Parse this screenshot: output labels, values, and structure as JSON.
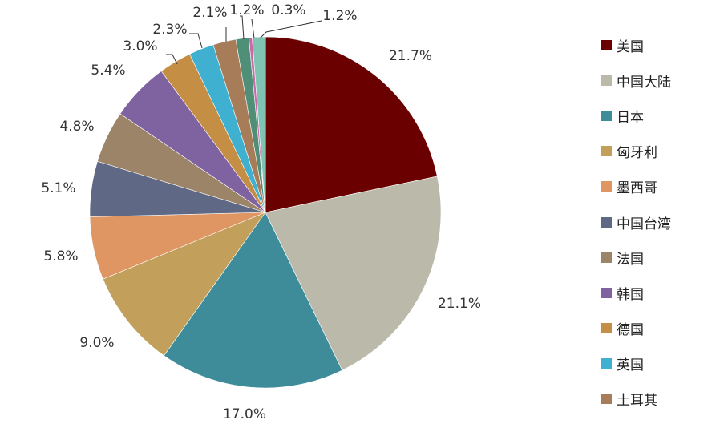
{
  "chart_data": {
    "type": "pie",
    "title": "",
    "slices": [
      {
        "label": "美国",
        "value": 21.7,
        "display": "21.7%",
        "color": "#6b0000"
      },
      {
        "label": "中国大陆",
        "value": 21.1,
        "display": "21.1%",
        "color": "#bbb9a9"
      },
      {
        "label": "日本",
        "value": 17.0,
        "display": "17.0%",
        "color": "#3e8b9a"
      },
      {
        "label": "匈牙利",
        "value": 9.0,
        "display": "9.0%",
        "color": "#c2a05c"
      },
      {
        "label": "墨西哥",
        "value": 5.8,
        "display": "5.8%",
        "color": "#e09662"
      },
      {
        "label": "中国台湾",
        "value": 5.1,
        "display": "5.1%",
        "color": "#5f6985"
      },
      {
        "label": "法国",
        "value": 4.8,
        "display": "4.8%",
        "color": "#9c8468"
      },
      {
        "label": "韩国",
        "value": 5.4,
        "display": "5.4%",
        "color": "#7f62a0"
      },
      {
        "label": "德国",
        "value": 3.0,
        "display": "3.0%",
        "color": "#c58e45"
      },
      {
        "label": "英国",
        "value": 2.3,
        "display": "2.3%",
        "color": "#3fb0cf"
      },
      {
        "label": "土耳其",
        "value": 2.1,
        "display": "2.1%",
        "color": "#a77c58"
      },
      {
        "label": "",
        "value": 1.2,
        "display": "1.2%",
        "color": "#4f8f78"
      },
      {
        "label": "",
        "value": 0.3,
        "display": "0.3%",
        "color": "#c86aa6"
      },
      {
        "label": "",
        "value": 1.2,
        "display": "1.2%",
        "color": "#7fc3b2"
      }
    ],
    "legend_position": "right"
  }
}
